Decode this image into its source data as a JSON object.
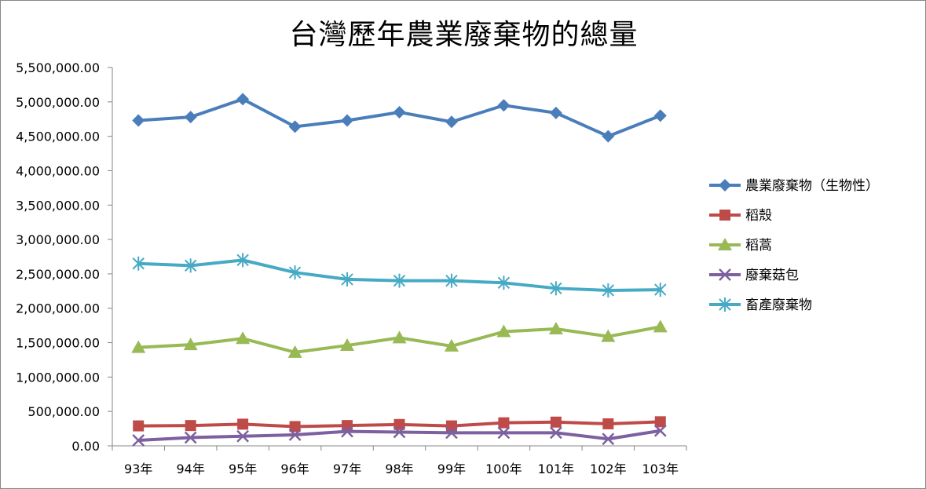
{
  "chart_data": {
    "type": "line",
    "title": "台灣歷年農業廢棄物的總量",
    "categories": [
      "93年",
      "94年",
      "95年",
      "96年",
      "97年",
      "98年",
      "99年",
      "100年",
      "101年",
      "102年",
      "103年"
    ],
    "y_ticks": [
      "0.00",
      "500,000.00",
      "1,000,000.00",
      "1,500,000.00",
      "2,000,000.00",
      "2,500,000.00",
      "3,000,000.00",
      "3,500,000.00",
      "4,000,000.00",
      "4,500,000.00",
      "5,000,000.00",
      "5,500,000.00"
    ],
    "ylim": [
      0,
      5500000
    ],
    "grid": false,
    "legend_position": "right",
    "series": [
      {
        "name": "農業廢棄物（生物性）",
        "color": "#4a7ebb",
        "marker": "diamond",
        "values": [
          4730000,
          4780000,
          5040000,
          4640000,
          4730000,
          4850000,
          4710000,
          4950000,
          4840000,
          4500000,
          4800000
        ]
      },
      {
        "name": "稻殼",
        "color": "#be4b48",
        "marker": "square",
        "values": [
          290000,
          295000,
          315000,
          280000,
          295000,
          310000,
          290000,
          335000,
          345000,
          320000,
          350000
        ]
      },
      {
        "name": "稻蒿",
        "color": "#98b954",
        "marker": "triangle",
        "values": [
          1430000,
          1470000,
          1560000,
          1360000,
          1460000,
          1570000,
          1450000,
          1660000,
          1700000,
          1590000,
          1730000
        ]
      },
      {
        "name": "廢棄菇包",
        "color": "#7d60a0",
        "marker": "x",
        "values": [
          80000,
          120000,
          140000,
          160000,
          210000,
          200000,
          190000,
          190000,
          190000,
          100000,
          220000
        ]
      },
      {
        "name": "畜產廢棄物",
        "color": "#46aac5",
        "marker": "star",
        "values": [
          2650000,
          2620000,
          2700000,
          2520000,
          2420000,
          2400000,
          2400000,
          2370000,
          2290000,
          2260000,
          2270000
        ]
      }
    ]
  }
}
